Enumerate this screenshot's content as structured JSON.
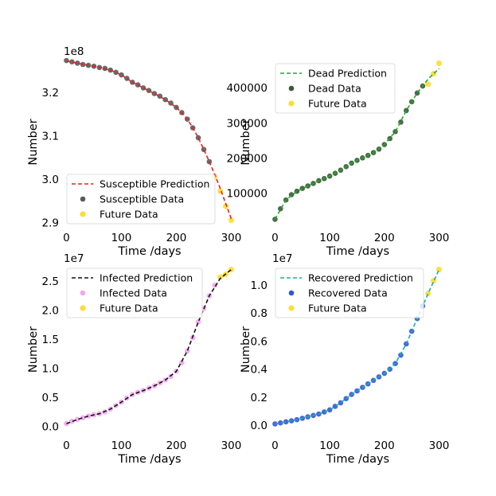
{
  "chart_data": [
    {
      "type": "line",
      "xlabel": "Time /days",
      "ylabel": "Number",
      "y_multiplier": "1e8",
      "xlim": [
        -5,
        308
      ],
      "ylim": [
        2.895,
        3.275
      ],
      "xticks": [
        0,
        100,
        200,
        300
      ],
      "yticks": [
        2.9,
        3.0,
        3.1,
        3.2
      ],
      "ytick_labels": [
        "2.9",
        "3.0",
        "3.1",
        "3.2"
      ],
      "grid": false,
      "legend_position": "center-left",
      "colors": {
        "prediction": "#e62020",
        "data": "#5a5a5a",
        "future": "#ffdd33"
      },
      "series": [
        {
          "name": "Susceptible Prediction",
          "kind": "dashed-line",
          "x": [
            0,
            20,
            40,
            60,
            80,
            100,
            120,
            140,
            160,
            180,
            200,
            210,
            220,
            230,
            240,
            250,
            260,
            270,
            280,
            290,
            300
          ],
          "y": [
            3.272,
            3.267,
            3.262,
            3.257,
            3.251,
            3.24,
            3.223,
            3.21,
            3.197,
            3.183,
            3.165,
            3.153,
            3.138,
            3.118,
            3.095,
            3.068,
            3.04,
            3.01,
            2.978,
            2.943,
            2.908
          ]
        },
        {
          "name": "Susceptible Data",
          "kind": "points",
          "x": [
            0,
            10,
            20,
            30,
            40,
            50,
            60,
            70,
            80,
            90,
            100,
            110,
            120,
            130,
            140,
            150,
            160,
            170,
            180,
            190,
            200,
            210,
            220,
            230,
            240,
            250,
            260
          ],
          "y": [
            3.273,
            3.27,
            3.267,
            3.264,
            3.262,
            3.26,
            3.257,
            3.255,
            3.251,
            3.246,
            3.24,
            3.232,
            3.223,
            3.217,
            3.21,
            3.204,
            3.197,
            3.191,
            3.183,
            3.175,
            3.165,
            3.153,
            3.138,
            3.118,
            3.095,
            3.068,
            3.04
          ]
        },
        {
          "name": "Future Data",
          "kind": "points",
          "x": [
            270,
            280,
            290,
            300
          ],
          "y": [
            3.005,
            2.972,
            2.937,
            2.905
          ]
        }
      ]
    },
    {
      "type": "line",
      "xlabel": "Time /days",
      "ylabel": "Number",
      "xlim": [
        -5,
        308
      ],
      "ylim": [
        10000,
        480000
      ],
      "xticks": [
        0,
        100,
        200,
        300
      ],
      "yticks": [
        100000,
        200000,
        300000,
        400000
      ],
      "ytick_labels": [
        "100000",
        "200000",
        "300000",
        "400000"
      ],
      "grid": false,
      "legend_position": "top-left",
      "colors": {
        "prediction": "#22aa22",
        "data": "#3a5a3a",
        "future": "#ffdd33"
      },
      "series": [
        {
          "name": "Dead Prediction",
          "kind": "dashed-line",
          "x": [
            0,
            20,
            40,
            60,
            80,
            100,
            120,
            140,
            160,
            180,
            200,
            220,
            240,
            260,
            280,
            300
          ],
          "y": [
            25000,
            80000,
            105000,
            120000,
            135000,
            148000,
            165000,
            185000,
            200000,
            215000,
            238000,
            275000,
            335000,
            385000,
            425000,
            455000
          ]
        },
        {
          "name": "Dead Data",
          "kind": "points",
          "x": [
            0,
            10,
            20,
            30,
            40,
            50,
            60,
            70,
            80,
            90,
            100,
            110,
            120,
            130,
            140,
            150,
            160,
            170,
            180,
            190,
            200,
            210,
            220,
            230,
            240,
            250,
            260,
            270
          ],
          "y": [
            25000,
            55000,
            80000,
            95000,
            105000,
            113000,
            120000,
            127000,
            135000,
            141000,
            148000,
            156000,
            165000,
            175000,
            185000,
            193000,
            200000,
            207000,
            215000,
            225000,
            238000,
            255000,
            275000,
            302000,
            335000,
            360000,
            385000,
            405000
          ]
        },
        {
          "name": "Future Data",
          "kind": "points",
          "x": [
            280,
            290,
            300
          ],
          "y": [
            410000,
            440000,
            470000
          ]
        }
      ]
    },
    {
      "type": "line",
      "xlabel": "Time /days",
      "ylabel": "Number",
      "y_multiplier": "1e7",
      "xlim": [
        -5,
        308
      ],
      "ylim": [
        -0.1,
        2.75
      ],
      "xticks": [
        0,
        100,
        200,
        300
      ],
      "yticks": [
        0.0,
        0.5,
        1.0,
        1.5,
        2.0,
        2.5
      ],
      "ytick_labels": [
        "0.0",
        "0.5",
        "1.0",
        "1.5",
        "2.0",
        "2.5"
      ],
      "grid": false,
      "legend_position": "top-left",
      "colors": {
        "prediction": "#111111",
        "data": "#f2a6f2",
        "future": "#ffdd33"
      },
      "series": [
        {
          "name": "Infected Prediction",
          "kind": "dashed-line",
          "x": [
            0,
            20,
            40,
            60,
            80,
            100,
            120,
            140,
            160,
            180,
            200,
            220,
            240,
            260,
            280,
            300
          ],
          "y": [
            0.05,
            0.12,
            0.18,
            0.22,
            0.3,
            0.42,
            0.55,
            0.62,
            0.7,
            0.8,
            0.95,
            1.3,
            1.8,
            2.25,
            2.55,
            2.7
          ]
        },
        {
          "name": "Infected Data",
          "kind": "points",
          "x": [
            0,
            10,
            20,
            30,
            40,
            50,
            60,
            70,
            80,
            90,
            100,
            110,
            120,
            130,
            140,
            150,
            160,
            170,
            180,
            190,
            200,
            210,
            220,
            230,
            240,
            250,
            260,
            270
          ],
          "y": [
            0.05,
            0.09,
            0.12,
            0.15,
            0.18,
            0.2,
            0.22,
            0.25,
            0.3,
            0.36,
            0.42,
            0.49,
            0.55,
            0.59,
            0.62,
            0.66,
            0.7,
            0.75,
            0.8,
            0.86,
            0.95,
            1.1,
            1.3,
            1.53,
            1.8,
            2.03,
            2.25,
            2.43
          ]
        },
        {
          "name": "Future Data",
          "kind": "points",
          "x": [
            280,
            290,
            300
          ],
          "y": [
            2.57,
            2.62,
            2.7
          ]
        }
      ]
    },
    {
      "type": "line",
      "xlabel": "Time /days",
      "ylabel": "Number",
      "y_multiplier": "1e7",
      "xlim": [
        -5,
        308
      ],
      "ylim": [
        -0.05,
        1.13
      ],
      "xticks": [
        0,
        100,
        200,
        300
      ],
      "yticks": [
        0.0,
        0.2,
        0.4,
        0.6,
        0.8,
        1.0
      ],
      "ytick_labels": [
        "0.0",
        "0.2",
        "0.4",
        "0.6",
        "0.8",
        "1.0"
      ],
      "grid": false,
      "legend_position": "top-left",
      "colors": {
        "prediction": "#1ab0a0",
        "data": "#3355dd",
        "future": "#ffdd33"
      },
      "series": [
        {
          "name": "Recovered Prediction",
          "kind": "dashed-line",
          "x": [
            0,
            20,
            40,
            60,
            80,
            100,
            120,
            140,
            160,
            180,
            200,
            220,
            240,
            260,
            280,
            300
          ],
          "y": [
            0.01,
            0.025,
            0.04,
            0.06,
            0.08,
            0.11,
            0.16,
            0.22,
            0.27,
            0.32,
            0.37,
            0.44,
            0.58,
            0.76,
            0.94,
            1.11
          ]
        },
        {
          "name": "Recovered Data",
          "kind": "points",
          "x": [
            0,
            10,
            20,
            30,
            40,
            50,
            60,
            70,
            80,
            90,
            100,
            110,
            120,
            130,
            140,
            150,
            160,
            170,
            180,
            190,
            200,
            210,
            220,
            230,
            240,
            250,
            260,
            270
          ],
          "y": [
            0.01,
            0.017,
            0.025,
            0.032,
            0.04,
            0.05,
            0.06,
            0.07,
            0.08,
            0.095,
            0.11,
            0.135,
            0.16,
            0.19,
            0.22,
            0.245,
            0.27,
            0.295,
            0.32,
            0.345,
            0.37,
            0.4,
            0.44,
            0.5,
            0.58,
            0.67,
            0.76,
            0.85
          ]
        },
        {
          "name": "Future Data",
          "kind": "points",
          "x": [
            280,
            290,
            300
          ],
          "y": [
            0.94,
            1.03,
            1.11
          ]
        }
      ]
    }
  ]
}
